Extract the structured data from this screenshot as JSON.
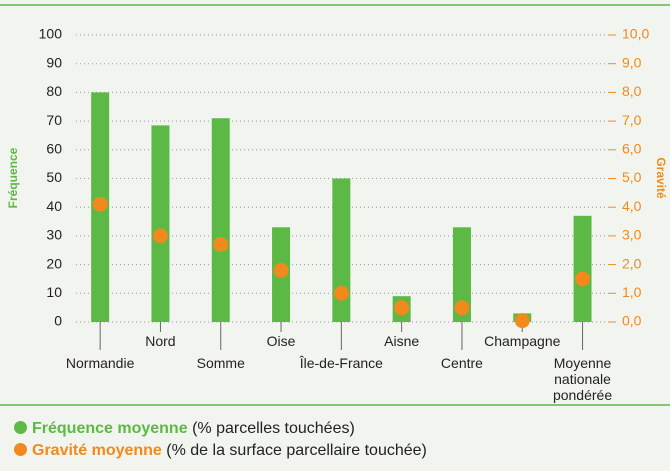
{
  "chart_data": {
    "type": "bar_dot",
    "y_label": "Fréquence",
    "y2_label": "Gravité",
    "categories": [
      "Normandie",
      "Nord",
      "Somme",
      "Oise",
      "Île-de-France",
      "Aisne",
      "Centre",
      "Champagne",
      "Moyenne nationale pondérée"
    ],
    "series": [
      {
        "name": "Fréquence moyenne",
        "description": "(% parcelles touchées)",
        "color": "#5cb946",
        "values": [
          80,
          68.5,
          71,
          33,
          50,
          9,
          33,
          3,
          37
        ]
      },
      {
        "name": "Gravité moyenne",
        "description": "(% de la surface parcellaire touchée)",
        "color": "#f08a1c",
        "axis": "y2",
        "values": [
          4.1,
          3.0,
          2.7,
          1.8,
          1.0,
          0.5,
          0.5,
          0.05,
          1.5
        ]
      }
    ],
    "ylim": [
      0,
      100
    ],
    "yticks": [
      0,
      10,
      20,
      30,
      40,
      50,
      60,
      70,
      80,
      90,
      100
    ],
    "y2lim": [
      0,
      10
    ],
    "y2ticks": [
      {
        "value": 0,
        "label": "0,0"
      },
      {
        "value": 1,
        "label": "1,0"
      },
      {
        "value": 2,
        "label": "2,0"
      },
      {
        "value": 3,
        "label": "3,0"
      },
      {
        "value": 4,
        "label": "4,0"
      },
      {
        "value": 5,
        "label": "5,0"
      },
      {
        "value": 6,
        "label": "6,0"
      },
      {
        "value": 7,
        "label": "7,0"
      },
      {
        "value": 8,
        "label": "8,0"
      },
      {
        "value": 9,
        "label": "9,0"
      },
      {
        "value": 10,
        "label": "10,0"
      }
    ],
    "grid": true
  }
}
